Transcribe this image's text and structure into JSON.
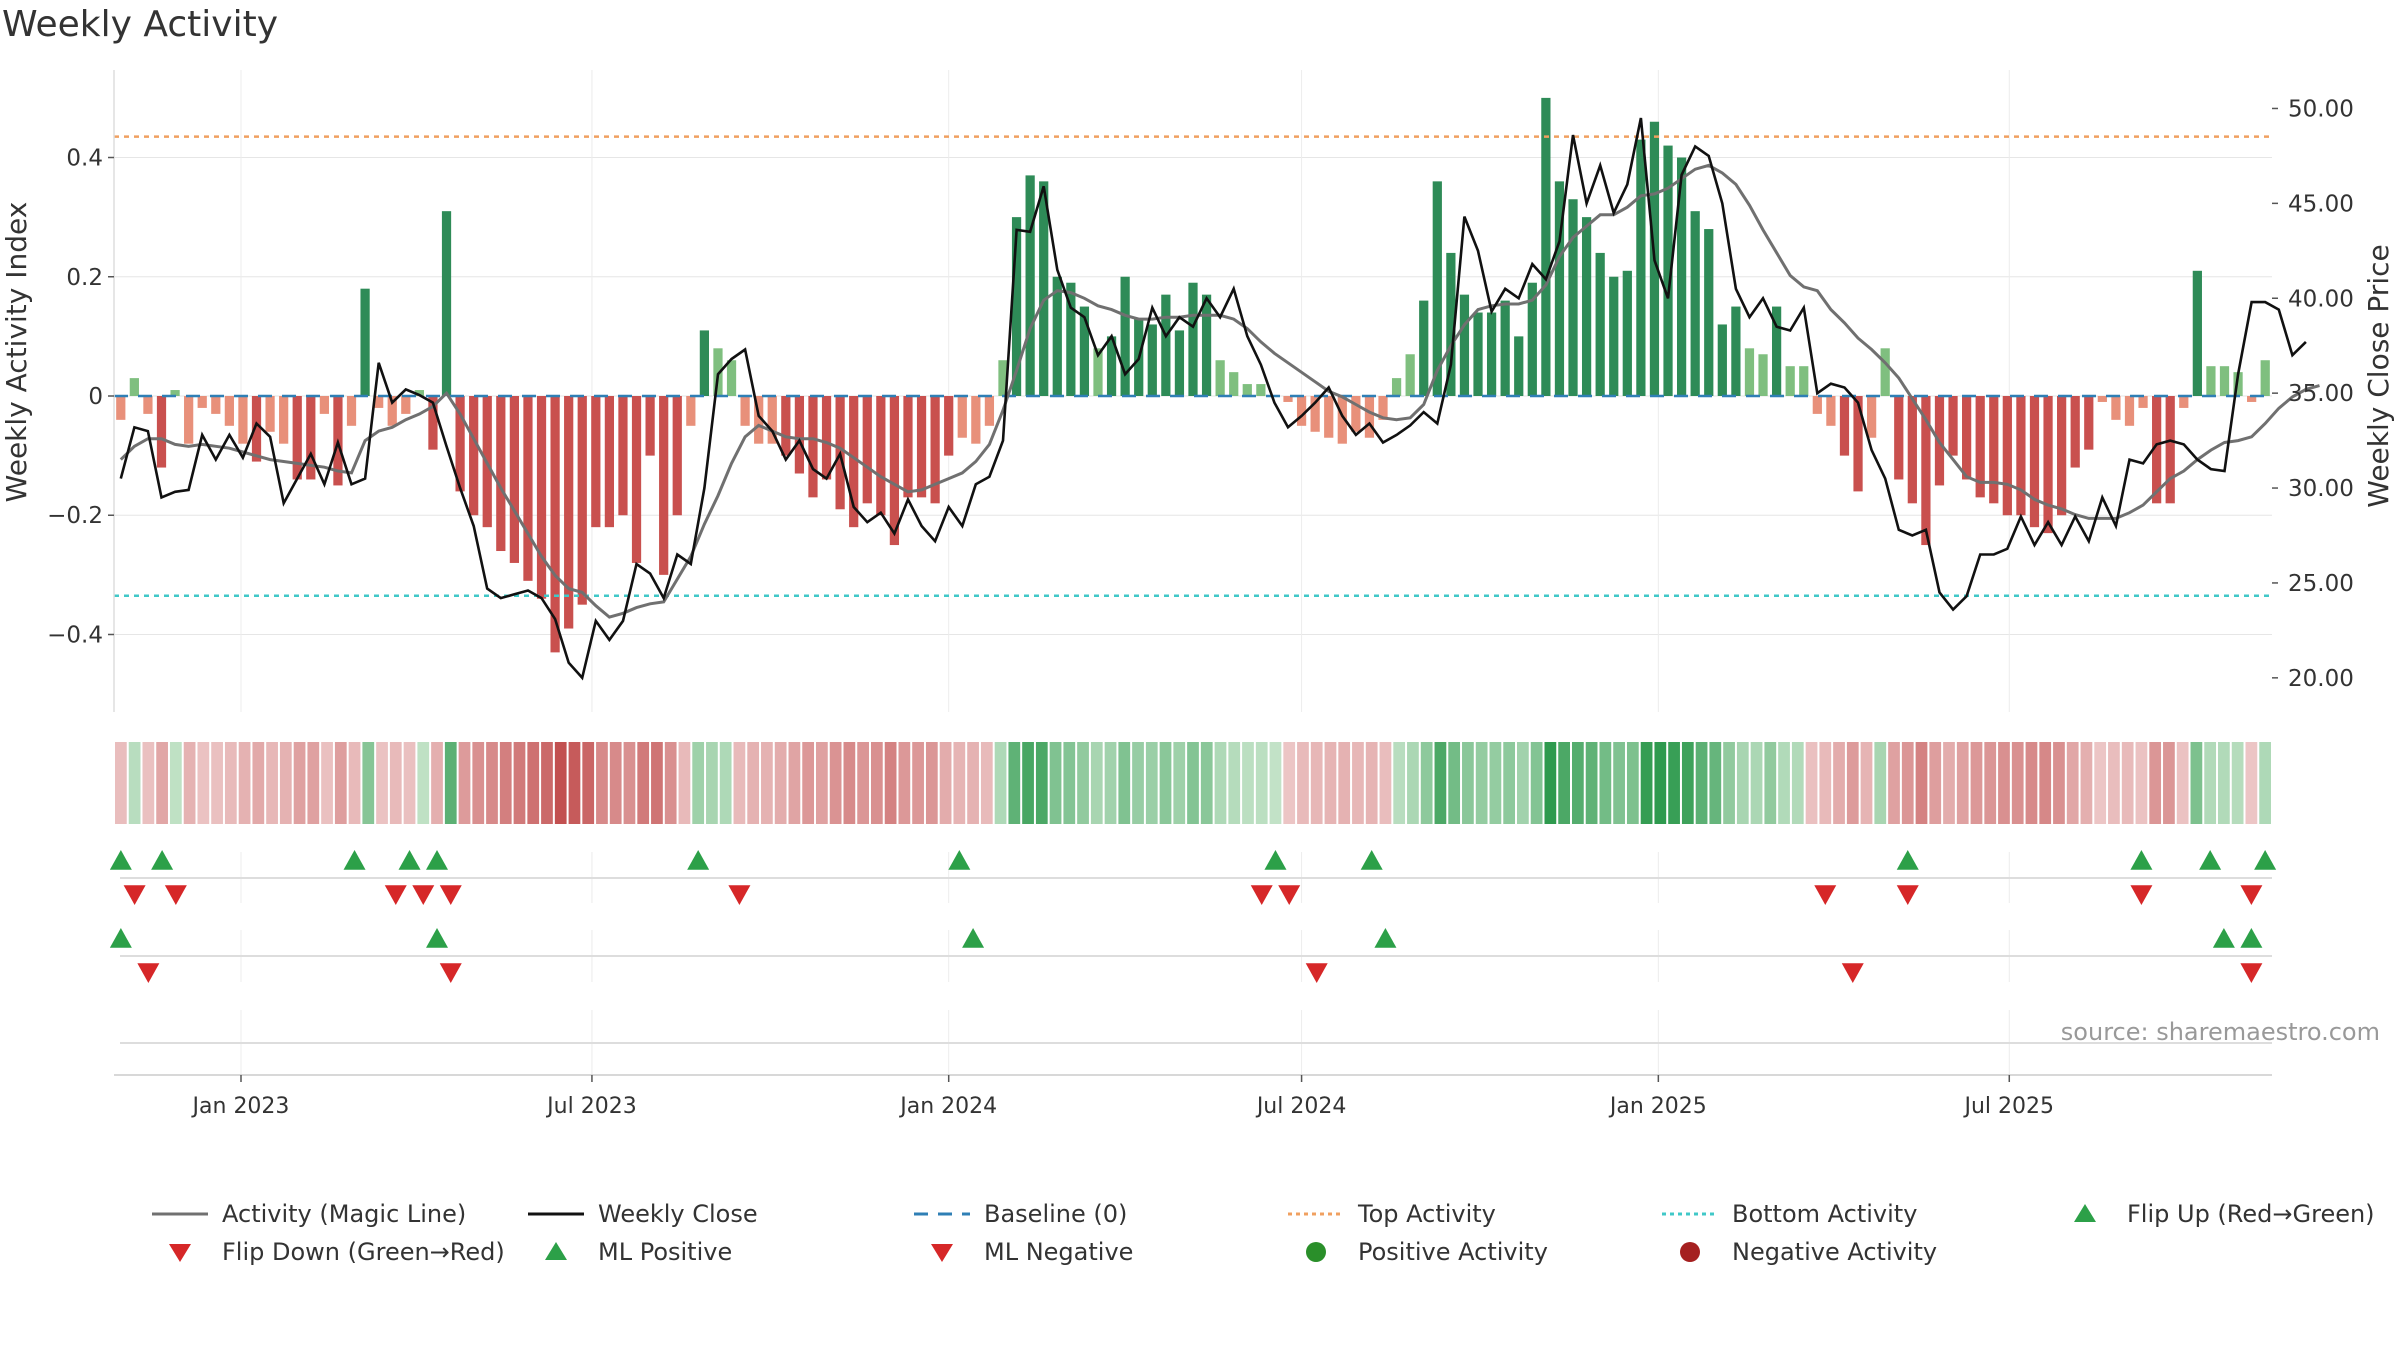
{
  "title": "Weekly Activity",
  "source_text": "source: sharemaestro.com",
  "colors": {
    "green_dark": "#2e8b57",
    "green_light": "#7fbf7f",
    "red_dark": "#c9504e",
    "red_light": "#e8907a",
    "magic_line": "#707070",
    "close_line": "#111111",
    "baseline": "#2f7fb5",
    "top_line": "#f0a060",
    "bottom_line": "#40c8c8",
    "marker_up": "#2ca048",
    "marker_down": "#d62728",
    "grid": "#e6e6e6"
  },
  "legend": [
    {
      "label": "Activity (Magic Line)",
      "icon": "gray-line"
    },
    {
      "label": "Weekly Close",
      "icon": "black-line"
    },
    {
      "label": "Baseline (0)",
      "icon": "blue-dashed-line"
    },
    {
      "label": "Top Activity",
      "icon": "orange-dotted-line"
    },
    {
      "label": "Bottom Activity",
      "icon": "cyan-dotted-line"
    },
    {
      "label": "Flip Up (Red→Green)",
      "icon": "green-triangle-up"
    },
    {
      "label": "Flip Down (Green→Red)",
      "icon": "red-triangle-down"
    },
    {
      "label": "ML Positive",
      "icon": "green-triangle-up"
    },
    {
      "label": "ML Negative",
      "icon": "red-triangle-down"
    },
    {
      "label": "Positive Activity",
      "icon": "green-circle"
    },
    {
      "label": "Negative Activity",
      "icon": "red-circle"
    }
  ],
  "chart_data": {
    "type": "bar",
    "x_start": "2022-10-31",
    "x_interval": "weekly",
    "x_ticks": [
      "Jan 2023",
      "Jul 2023",
      "Jan 2024",
      "Jul 2024",
      "Jan 2025",
      "Jul 2025"
    ],
    "x_tick_dates": [
      "2023-01-01",
      "2023-07-01",
      "2024-01-01",
      "2024-07-01",
      "2025-01-01",
      "2025-07-01"
    ],
    "y_left": {
      "label": "Weekly Activity Index",
      "ticks": [
        -0.4,
        -0.2,
        0,
        0.2,
        0.4
      ],
      "tick_labels": [
        "−0.4",
        "−0.2",
        "0",
        "0.2",
        "0.4"
      ],
      "lim": [
        -0.53,
        0.53
      ]
    },
    "y_right": {
      "label": "Weekly Close Price",
      "ticks": [
        20,
        25,
        30,
        35,
        40,
        45,
        50
      ],
      "tick_labels": [
        "20.00",
        "25.00",
        "30.00",
        "35.00",
        "40.00",
        "45.00",
        "50.00"
      ],
      "lim": [
        18.2,
        51.5
      ]
    },
    "top_activity": 0.435,
    "bottom_activity": -0.335,
    "grid": true,
    "legend_position": "bottom",
    "activity": [
      -0.04,
      0.03,
      -0.03,
      -0.12,
      0.01,
      -0.08,
      -0.02,
      -0.03,
      -0.05,
      -0.08,
      -0.11,
      -0.06,
      -0.08,
      -0.14,
      -0.14,
      -0.03,
      -0.15,
      -0.05,
      0.18,
      -0.02,
      -0.05,
      -0.03,
      0.01,
      -0.09,
      0.31,
      -0.16,
      -0.2,
      -0.22,
      -0.26,
      -0.28,
      -0.31,
      -0.34,
      -0.43,
      -0.39,
      -0.35,
      -0.22,
      -0.22,
      -0.2,
      -0.28,
      -0.1,
      -0.3,
      -0.2,
      -0.05,
      0.11,
      0.08,
      0.06,
      -0.05,
      -0.08,
      -0.08,
      -0.1,
      -0.13,
      -0.17,
      -0.14,
      -0.19,
      -0.22,
      -0.18,
      -0.2,
      -0.25,
      -0.17,
      -0.17,
      -0.18,
      -0.1,
      -0.07,
      -0.08,
      -0.05,
      0.06,
      0.3,
      0.37,
      0.36,
      0.2,
      0.19,
      0.15,
      0.08,
      0.1,
      0.2,
      0.13,
      0.12,
      0.17,
      0.11,
      0.19,
      0.17,
      0.06,
      0.04,
      0.02,
      0.02,
      0.0,
      -0.01,
      -0.05,
      -0.06,
      -0.07,
      -0.08,
      -0.06,
      -0.07,
      -0.04,
      0.03,
      0.07,
      0.16,
      0.36,
      0.24,
      0.17,
      0.14,
      0.14,
      0.16,
      0.1,
      0.19,
      0.5,
      0.36,
      0.33,
      0.3,
      0.24,
      0.2,
      0.21,
      0.43,
      0.46,
      0.42,
      0.4,
      0.31,
      0.28,
      0.12,
      0.15,
      0.08,
      0.07,
      0.15,
      0.05,
      0.05,
      -0.03,
      -0.05,
      -0.1,
      -0.16,
      -0.07,
      0.08,
      -0.14,
      -0.18,
      -0.25,
      -0.15,
      -0.1,
      -0.14,
      -0.17,
      -0.18,
      -0.2,
      -0.2,
      -0.22,
      -0.23,
      -0.2,
      -0.12,
      -0.09,
      -0.01,
      -0.04,
      -0.05,
      -0.02,
      -0.18,
      -0.18,
      -0.02,
      0.21,
      0.05,
      0.05,
      0.04,
      -0.01,
      0.06
    ],
    "weekly_close": [
      30.5,
      33.2,
      33,
      29.5,
      29.8,
      29.9,
      32.8,
      31.5,
      32.8,
      31.6,
      33.4,
      32.7,
      29.2,
      30.5,
      31.8,
      30.2,
      32.4,
      30.2,
      30.5,
      36.6,
      34.5,
      35.2,
      34.9,
      34.5,
      32.2,
      30,
      28,
      24.7,
      24.2,
      24.4,
      24.6,
      24.2,
      23.1,
      20.8,
      20,
      23,
      22,
      23,
      26,
      25.5,
      24.2,
      26.5,
      26,
      30,
      36,
      36.8,
      37.3,
      33.8,
      33,
      31.5,
      32.5,
      31,
      30.5,
      31.8,
      29,
      28.2,
      28.7,
      27.6,
      29.4,
      28,
      27.2,
      29,
      28,
      30.2,
      30.6,
      32.5,
      43.6,
      43.5,
      45.9,
      41.5,
      39.5,
      39,
      37,
      38,
      36,
      36.8,
      39.5,
      38,
      39,
      38.5,
      40,
      39,
      40.5,
      38,
      36.5,
      34.5,
      33.2,
      33.8,
      34.5,
      35.3,
      33.8,
      32.8,
      33.4,
      32.4,
      32.8,
      33.3,
      34,
      33.4,
      36.5,
      44.3,
      42.5,
      39.3,
      40.5,
      40,
      41.8,
      41,
      43,
      48.6,
      45,
      47,
      44.5,
      46,
      49.5,
      42,
      40,
      46.5,
      48,
      47.5,
      45,
      40.5,
      39,
      40,
      38.5,
      38.3,
      39.5,
      35,
      35.5,
      35.3,
      34.5,
      32,
      30.5,
      27.8,
      27.5,
      27.8,
      24.5,
      23.6,
      24.3,
      26.5,
      26.5,
      26.8,
      28.5,
      27,
      28.2,
      27,
      28.5,
      27.2,
      29.5,
      28,
      31.5,
      31.3,
      32.3,
      32.5,
      32.3,
      31.5,
      31,
      30.9,
      36,
      39.8,
      39.8,
      39.4,
      37,
      37.7
    ],
    "magic_line": [
      31.5,
      32.2,
      32.6,
      32.6,
      32.3,
      32.2,
      32.3,
      32.2,
      32.1,
      31.9,
      31.7,
      31.5,
      31.4,
      31.3,
      31.2,
      31.1,
      30.9,
      30.8,
      32.5,
      33.0,
      33.2,
      33.6,
      33.9,
      34.3,
      35.0,
      33.9,
      32.6,
      31.3,
      30.0,
      28.8,
      27.6,
      26.4,
      25.4,
      24.7,
      24.5,
      23.8,
      23.2,
      23.4,
      23.7,
      23.9,
      24.0,
      25.2,
      26.4,
      28.1,
      29.6,
      31.3,
      32.7,
      33.3,
      33.0,
      32.7,
      32.6,
      32.6,
      32.4,
      32.1,
      31.6,
      31.1,
      30.6,
      30.2,
      29.8,
      29.9,
      30.2,
      30.5,
      30.8,
      31.4,
      32.3,
      34.1,
      36.2,
      38.4,
      39.9,
      40.4,
      40.3,
      40.0,
      39.6,
      39.4,
      39.1,
      38.9,
      38.9,
      39.0,
      39.0,
      39.1,
      39.1,
      39.1,
      38.9,
      38.4,
      37.7,
      37.1,
      36.6,
      36.1,
      35.6,
      35.1,
      34.8,
      34.4,
      34.0,
      33.7,
      33.6,
      33.7,
      34.4,
      36.2,
      37.5,
      38.6,
      39.4,
      39.6,
      39.7,
      39.7,
      39.9,
      40.7,
      42.2,
      43.2,
      43.8,
      44.4,
      44.4,
      44.8,
      45.4,
      45.5,
      45.8,
      46.3,
      46.8,
      47.0,
      46.6,
      46.0,
      44.9,
      43.6,
      42.4,
      41.2,
      40.6,
      40.4,
      39.4,
      38.7,
      37.9,
      37.3,
      36.6,
      35.8,
      34.7,
      33.6,
      32.4,
      31.5,
      30.6,
      30.3,
      30.3,
      30.2,
      29.9,
      29.4,
      29.1,
      28.9,
      28.6,
      28.4,
      28.4,
      28.4,
      28.7,
      29.1,
      29.8,
      30.5,
      30.9,
      31.5,
      32.0,
      32.4,
      32.5,
      32.7,
      33.4,
      34.2,
      34.8,
      35.2,
      35.4
    ],
    "heat_strip_weeks": 157,
    "flip_up_weeks": [
      1,
      4,
      18,
      22,
      24,
      43,
      62,
      85,
      92,
      131,
      148,
      153,
      157
    ],
    "flip_down_weeks": [
      2,
      5,
      21,
      23,
      25,
      46,
      84,
      86,
      125,
      131,
      148,
      156
    ],
    "ml_positive_weeks": [
      1,
      24,
      63,
      93,
      154,
      156
    ],
    "ml_negative_weeks": [
      3,
      25,
      88,
      127,
      156
    ]
  }
}
